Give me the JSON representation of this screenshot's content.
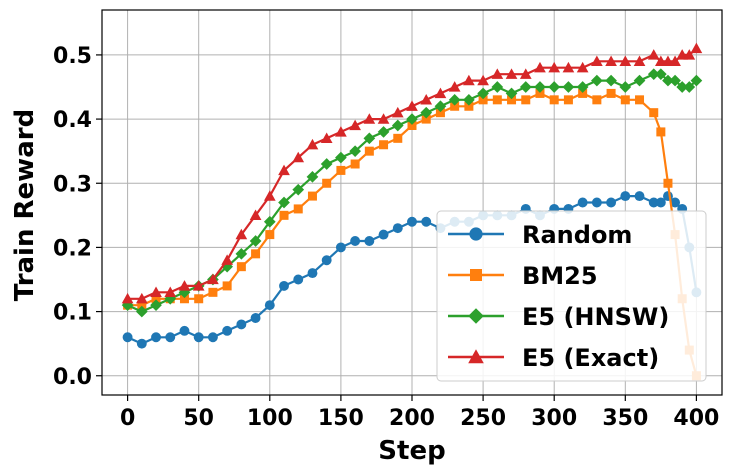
{
  "chart_data": {
    "type": "line",
    "title": "",
    "xlabel": "Step",
    "ylabel": "Train Reward",
    "xlim": [
      -18,
      418
    ],
    "ylim": [
      -0.03,
      0.57
    ],
    "xticks": [
      0,
      50,
      100,
      150,
      200,
      250,
      300,
      350,
      400
    ],
    "yticks": [
      0.0,
      0.1,
      0.2,
      0.3,
      0.4,
      0.5
    ],
    "ytick_labels": [
      "0.0",
      "0.1",
      "0.2",
      "0.3",
      "0.4",
      "0.5"
    ],
    "grid": true,
    "legend_position": "lower-right",
    "x": [
      0,
      10,
      20,
      30,
      40,
      50,
      60,
      70,
      80,
      90,
      100,
      110,
      120,
      130,
      140,
      150,
      160,
      170,
      180,
      190,
      200,
      210,
      220,
      230,
      240,
      250,
      260,
      270,
      280,
      290,
      300,
      310,
      320,
      330,
      340,
      350,
      360,
      370,
      375,
      380,
      385,
      390,
      395,
      400
    ],
    "series": [
      {
        "name": "Random",
        "color": "#1f77b4",
        "marker": "circle",
        "values": [
          0.06,
          0.05,
          0.06,
          0.06,
          0.07,
          0.06,
          0.06,
          0.07,
          0.08,
          0.09,
          0.11,
          0.14,
          0.15,
          0.16,
          0.18,
          0.2,
          0.21,
          0.21,
          0.22,
          0.23,
          0.24,
          0.24,
          0.23,
          0.24,
          0.24,
          0.25,
          0.25,
          0.25,
          0.26,
          0.25,
          0.26,
          0.26,
          0.27,
          0.27,
          0.27,
          0.28,
          0.28,
          0.27,
          0.27,
          0.28,
          0.27,
          0.26,
          0.2,
          0.13
        ]
      },
      {
        "name": "BM25",
        "color": "#ff7f0e",
        "marker": "square",
        "values": [
          0.11,
          0.11,
          0.12,
          0.12,
          0.12,
          0.12,
          0.13,
          0.14,
          0.17,
          0.19,
          0.22,
          0.25,
          0.26,
          0.28,
          0.3,
          0.32,
          0.33,
          0.35,
          0.36,
          0.37,
          0.39,
          0.4,
          0.41,
          0.42,
          0.42,
          0.43,
          0.43,
          0.43,
          0.43,
          0.44,
          0.43,
          0.43,
          0.44,
          0.43,
          0.44,
          0.43,
          0.43,
          0.41,
          0.38,
          0.3,
          0.22,
          0.12,
          0.04,
          0.0
        ]
      },
      {
        "name": "E5 (HNSW)",
        "color": "#2ca02c",
        "marker": "diamond",
        "values": [
          0.11,
          0.1,
          0.11,
          0.12,
          0.13,
          0.14,
          0.15,
          0.17,
          0.19,
          0.21,
          0.24,
          0.27,
          0.29,
          0.31,
          0.33,
          0.34,
          0.35,
          0.37,
          0.38,
          0.39,
          0.4,
          0.41,
          0.42,
          0.43,
          0.43,
          0.44,
          0.45,
          0.44,
          0.45,
          0.45,
          0.45,
          0.45,
          0.45,
          0.46,
          0.46,
          0.45,
          0.46,
          0.47,
          0.47,
          0.46,
          0.46,
          0.45,
          0.45,
          0.46
        ]
      },
      {
        "name": "E5 (Exact)",
        "color": "#d62728",
        "marker": "triangle",
        "values": [
          0.12,
          0.12,
          0.13,
          0.13,
          0.14,
          0.14,
          0.15,
          0.18,
          0.22,
          0.25,
          0.28,
          0.32,
          0.34,
          0.36,
          0.37,
          0.38,
          0.39,
          0.4,
          0.4,
          0.41,
          0.42,
          0.43,
          0.44,
          0.45,
          0.46,
          0.46,
          0.47,
          0.47,
          0.47,
          0.48,
          0.48,
          0.48,
          0.48,
          0.49,
          0.49,
          0.49,
          0.49,
          0.5,
          0.49,
          0.49,
          0.49,
          0.5,
          0.5,
          0.51
        ]
      }
    ]
  }
}
